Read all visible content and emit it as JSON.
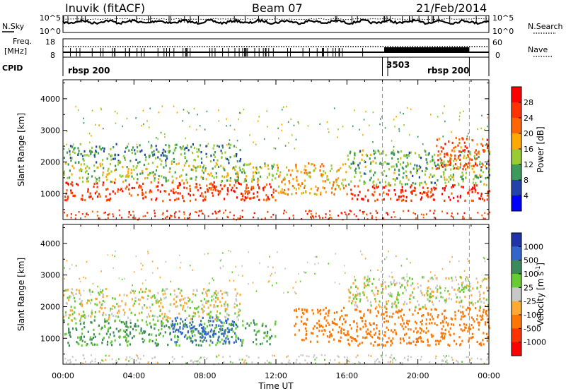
{
  "header": {
    "station": "Inuvik (fitACF)",
    "beam": "Beam 07",
    "date": "21/Feb/2014"
  },
  "summary": {
    "left_labels": {
      "nsky": "N.Sky",
      "freq_line1": "Freq.",
      "freq_line2": "[MHz]",
      "cpid": "CPID"
    },
    "right_labels": {
      "nsearch": "N.Search",
      "nave": "Nave"
    },
    "nsky_ticks": [
      "10^5",
      "10^0"
    ],
    "nsearch_ticks": [
      "10^5",
      "10^0"
    ],
    "freq_ticks": [
      "18",
      "8"
    ],
    "nave_ticks": [
      "60",
      "0"
    ],
    "cpid_segments": [
      {
        "label": "rbsp 200",
        "start_hour": 0.0,
        "end_hour": 18.0
      },
      {
        "label": "3503",
        "start_hour": 18.0,
        "end_hour": 18.3
      },
      {
        "label": "rbsp 200",
        "start_hour": 18.3,
        "end_hour": 22.9
      }
    ]
  },
  "chart_data": [
    {
      "type": "heatmap",
      "name": "power-panel",
      "ylabel": "Slant Range [km]",
      "ylim": [
        180,
        4600
      ],
      "yticks": [
        1000,
        2000,
        3000,
        4000
      ],
      "xlim": [
        0,
        24
      ],
      "colorbar": {
        "label": "Power [dB]",
        "range": [
          0,
          32
        ],
        "ticks": [
          "28",
          "24",
          "20",
          "16",
          "12",
          "8",
          "4"
        ],
        "colors": [
          "#ff0000",
          "#ff3300",
          "#ff6600",
          "#ffaa00",
          "#99cc33",
          "#3c9a5a",
          "#2244aa",
          "#0000ff"
        ]
      },
      "bands": [
        {
          "t": [
            0.0,
            12.0
          ],
          "r": [
            800,
            1400
          ],
          "value": 26
        },
        {
          "t": [
            0.0,
            12.0
          ],
          "r": [
            1400,
            2000
          ],
          "value": 14
        },
        {
          "t": [
            0.0,
            10.0
          ],
          "r": [
            2000,
            2600
          ],
          "value": 10
        },
        {
          "t": [
            12.0,
            16.0
          ],
          "r": [
            1000,
            2000
          ],
          "value": 18
        },
        {
          "t": [
            16.0,
            24.0
          ],
          "r": [
            800,
            1300
          ],
          "value": 27
        },
        {
          "t": [
            16.0,
            24.0
          ],
          "r": [
            1300,
            2400
          ],
          "value": 12
        },
        {
          "t": [
            21.0,
            24.0
          ],
          "r": [
            1800,
            2800
          ],
          "value": 24
        }
      ]
    },
    {
      "type": "heatmap",
      "name": "velocity-panel",
      "ylabel": "Slant Range [km]",
      "ylim": [
        180,
        4600
      ],
      "yticks": [
        1000,
        2000,
        3000,
        4000
      ],
      "xlim": [
        0,
        24
      ],
      "xticks": [
        "00:00",
        "04:00",
        "08:00",
        "12:00",
        "16:00",
        "20:00",
        "00:00"
      ],
      "xlabel": "Time UT",
      "colorbar": {
        "label": "Velocity [m s",
        "label_sup": "-1",
        "label_end": "]",
        "ticks": [
          "1000",
          "500",
          "100",
          "25",
          "-25",
          "-100",
          "-500",
          "-1000"
        ],
        "colors": [
          "#2233aa",
          "#3366cc",
          "#3c8a5a",
          "#66cc33",
          "#c8c8c8",
          "#ffaa33",
          "#ff7700",
          "#ff3300",
          "#ff0000"
        ]
      },
      "bands": [
        {
          "t": [
            0.0,
            12.0
          ],
          "r": [
            800,
            1600
          ],
          "value": 120
        },
        {
          "t": [
            6.0,
            10.0
          ],
          "r": [
            900,
            1700
          ],
          "value": 800
        },
        {
          "t": [
            0.0,
            10.0
          ],
          "r": [
            1600,
            2600
          ],
          "value": 0
        },
        {
          "t": [
            13.0,
            16.0
          ],
          "r": [
            900,
            2000
          ],
          "value": -200
        },
        {
          "t": [
            16.0,
            24.0
          ],
          "r": [
            800,
            2000
          ],
          "value": -300
        },
        {
          "t": [
            16.0,
            24.0
          ],
          "r": [
            2000,
            3000
          ],
          "value": 0
        }
      ]
    }
  ]
}
